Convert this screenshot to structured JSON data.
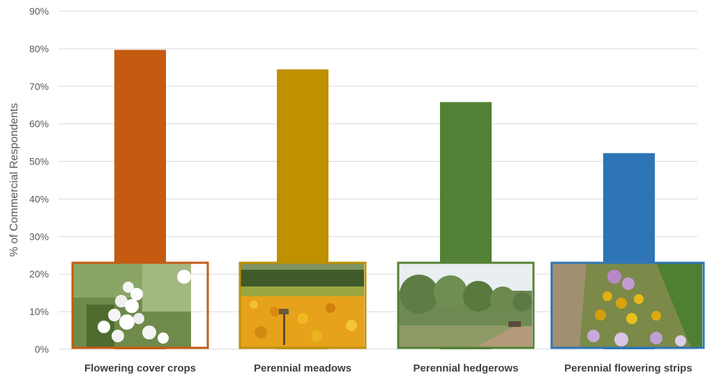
{
  "chart_data": {
    "type": "bar",
    "title": "",
    "xlabel": "",
    "ylabel": "% of Commercial Respondents",
    "ylim": [
      0,
      90
    ],
    "yticks": [
      "0%",
      "10%",
      "20%",
      "30%",
      "40%",
      "50%",
      "60%",
      "70%",
      "80%",
      "90%"
    ],
    "ytick_values": [
      0,
      10,
      20,
      30,
      40,
      50,
      60,
      70,
      80,
      90
    ],
    "grid": true,
    "legend": "none",
    "categories": [
      "Flowering cover crops",
      "Perennial meadows",
      "Perennial hedgerows",
      "Perennial flowering strips"
    ],
    "values": [
      79.7,
      74.5,
      65.8,
      52.2
    ],
    "colors": [
      "#c55a11",
      "#bf9000",
      "#538135",
      "#2e75b6"
    ],
    "photos": [
      "white-flower-cluster-photo",
      "orange-meadow-photo",
      "hedgerow-path-photo",
      "flower-strip-photo"
    ]
  }
}
